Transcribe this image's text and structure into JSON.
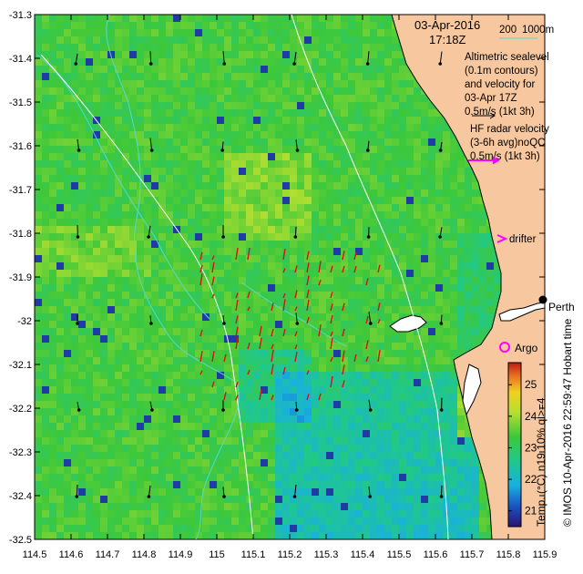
{
  "header": {
    "date": "03-Apr-2016",
    "time": "17:18Z"
  },
  "bathymetry_legend": {
    "label_200": "200",
    "label_1000": "1000m",
    "color": "#55d8d0"
  },
  "legend": {
    "altimetry_lines": [
      "Altimetric sealevel",
      "(0.1m contours)",
      "and velocity for",
      "03-Apr 17Z",
      "0.5m/s (1kt 3h)"
    ],
    "hf_radar_lines": [
      "HF radar velocity",
      "(3-6h avg)noQC",
      "0.5m/s (1kt 3h)"
    ],
    "drifter_label": "drifter",
    "argo_label": "Argo",
    "altimetry_arrow_color": "#000000",
    "hf_arrow_color": "#ff00ff",
    "radar_vector_color": "#e01010"
  },
  "place": {
    "name": "Perth"
  },
  "colorbar": {
    "title": "Temp. (°C) n19 10% ql>=4",
    "ticks": [
      "21",
      "22",
      "23",
      "24",
      "25"
    ],
    "min": 20.5,
    "max": 25.7
  },
  "credit": "© IMOS 10-Apr-2016 22:59:47 Hobart time",
  "chart_data": {
    "type": "heatmap",
    "title": "",
    "xlabel": "",
    "ylabel": "",
    "xlim": [
      114.5,
      115.9
    ],
    "ylim": [
      -32.5,
      -31.3
    ],
    "x_ticks": [
      "114.5",
      "114.6",
      "114.7",
      "114.8",
      "114.9",
      "115",
      "115.1",
      "115.2",
      "115.3",
      "115.4",
      "115.5",
      "115.6",
      "115.7",
      "115.8",
      "115.9"
    ],
    "y_ticks": [
      "-31.3",
      "-31.4",
      "-31.5",
      "-31.6",
      "-31.7",
      "-31.8",
      "-31.9",
      "-32",
      "-32.1",
      "-32.2",
      "-32.3",
      "-32.4",
      "-32.5"
    ],
    "land_color": "#f7c8a0",
    "colors": {
      "cold": "#1a1a8c",
      "cool": "#1aa0d8",
      "mid": "#2ec84a",
      "warm": "#c8e628",
      "hot": "#e0202a"
    }
  }
}
